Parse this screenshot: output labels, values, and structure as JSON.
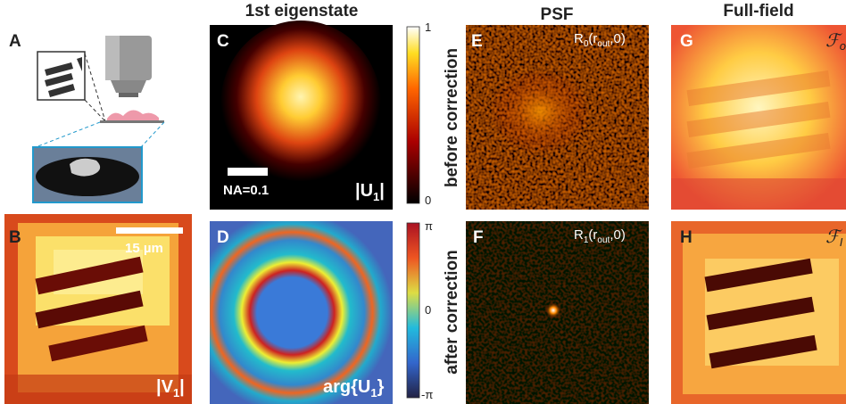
{
  "panel_letters": [
    "A",
    "B",
    "C",
    "D",
    "E",
    "F",
    "G",
    "H"
  ],
  "column_titles": [
    "1st eigenstate",
    "PSF",
    "Full-field"
  ],
  "row_labels": [
    "before correction",
    "after correction"
  ],
  "scale_labels": {
    "numerical_aperture": "NA=0.1",
    "scalebar": "15 µm"
  },
  "image_labels": {
    "u1": [
      "|U",
      "1",
      "|"
    ],
    "v1": [
      "|V",
      "1",
      "|"
    ],
    "arg": [
      "arg{U",
      "1",
      "}"
    ],
    "r0": [
      "R",
      "0",
      "(r",
      "out",
      ",0)"
    ],
    "r1": [
      "R",
      "1",
      "(r",
      "out",
      ",0)"
    ],
    "f_before": [
      "ℱ",
      "o"
    ],
    "f_after": [
      "ℱ",
      "I"
    ]
  },
  "colorbars": [
    {
      "ticks": [
        "1",
        "0"
      ]
    },
    {
      "ticks": [
        "π",
        "0",
        "-π"
      ]
    }
  ]
}
